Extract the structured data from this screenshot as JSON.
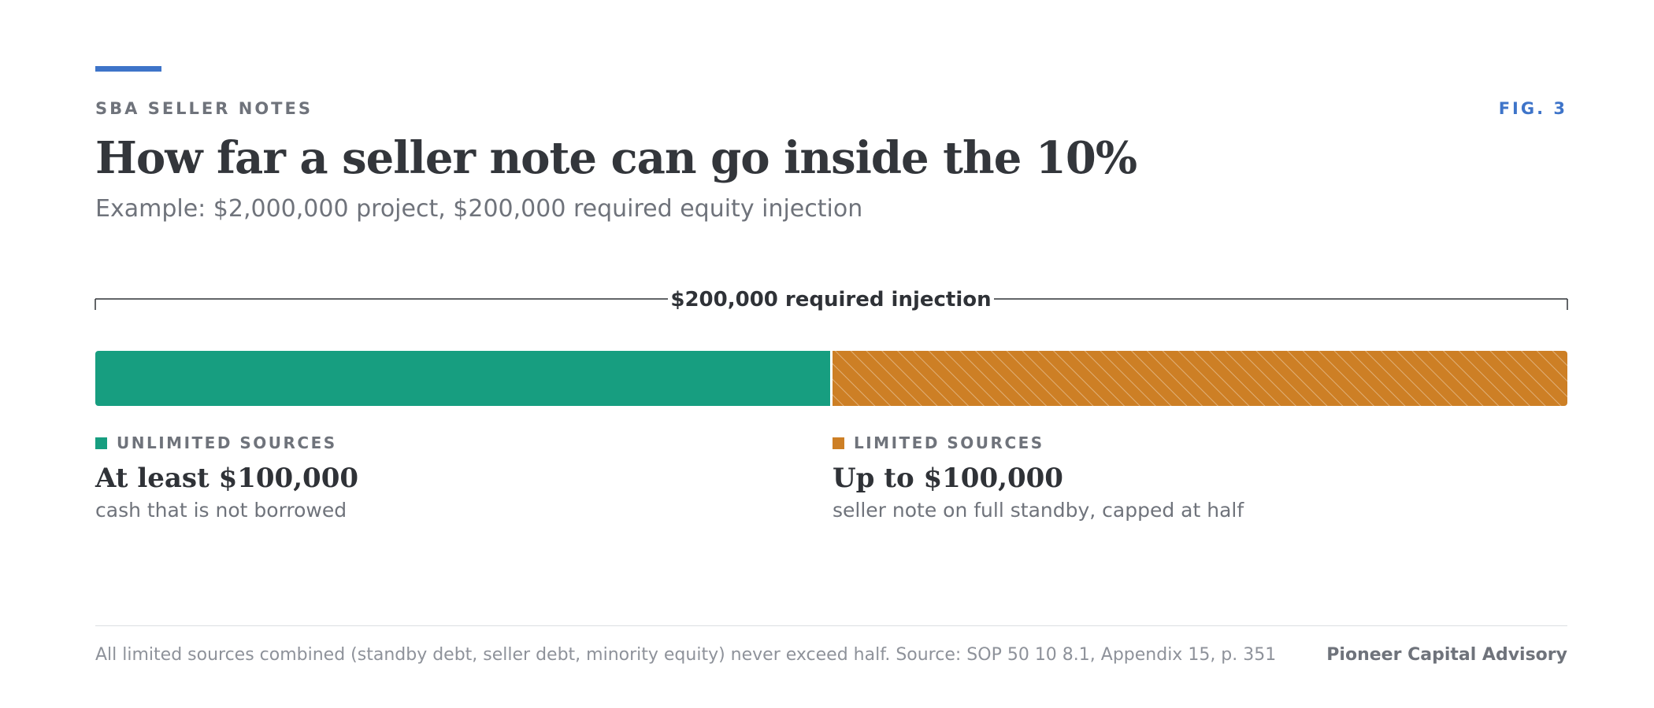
{
  "header": {
    "kicker": "SBA SELLER NOTES",
    "figure_label": "FIG. 3",
    "title": "How far a seller note can go inside the 10%",
    "subtitle": "Example: $2,000,000 project, $200,000 required equity injection"
  },
  "chart_data": {
    "type": "bar",
    "orientation": "horizontal",
    "stacked": true,
    "total_value": 200000,
    "total_label": "$200,000 required injection",
    "series": [
      {
        "key": "unlimited",
        "label": "UNLIMITED SOURCES",
        "value": 100000,
        "amount_label": "At least $100,000",
        "description": "cash that is not borrowed",
        "color": "#179e80",
        "pattern": "solid"
      },
      {
        "key": "limited",
        "label": "LIMITED SOURCES",
        "value": 100000,
        "amount_label": "Up to $100,000",
        "description": "seller note on full standby, capped at half",
        "color": "#cd7f25",
        "pattern": "hatched"
      }
    ],
    "grid": false,
    "legend_placement": "below"
  },
  "footer": {
    "note": "All limited sources combined (standby debt, seller debt, minority equity) never exceed half. Source: SOP 50 10 8.1, Appendix 15, p. 351",
    "brand": "Pioneer Capital Advisory"
  },
  "colors": {
    "accent": "#3e74c9",
    "unlimited": "#179e80",
    "limited": "#cd7f25",
    "muted_text": "#6f737b",
    "dark_text": "#2f3237"
  }
}
